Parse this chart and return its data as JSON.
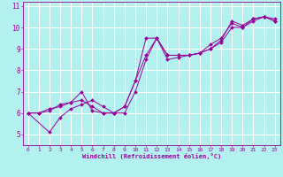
{
  "xlabel": "Windchill (Refroidissement éolien,°C)",
  "bg_color": "#b3f0f0",
  "line_color": "#990099",
  "grid_color": "#ffffff",
  "xlim": [
    -0.5,
    23.5
  ],
  "ylim": [
    4.5,
    11.2
  ],
  "xticks": [
    0,
    1,
    2,
    3,
    4,
    5,
    6,
    7,
    8,
    9,
    10,
    11,
    12,
    13,
    14,
    15,
    16,
    17,
    18,
    19,
    20,
    21,
    22,
    23
  ],
  "yticks": [
    5,
    6,
    7,
    8,
    9,
    10,
    11
  ],
  "series": [
    {
      "x": [
        0,
        1,
        2,
        3,
        4,
        5,
        6,
        7,
        8,
        9,
        10,
        11,
        12,
        13,
        14,
        15,
        16,
        17,
        18,
        19,
        20,
        21,
        22,
        23
      ],
      "y": [
        6.0,
        6.0,
        6.1,
        6.4,
        6.5,
        7.0,
        6.1,
        6.0,
        6.0,
        6.3,
        7.5,
        9.5,
        9.5,
        8.7,
        8.7,
        8.7,
        8.8,
        9.0,
        9.4,
        10.3,
        10.1,
        10.4,
        10.5,
        10.3
      ]
    },
    {
      "x": [
        0,
        1,
        2,
        3,
        4,
        5,
        6,
        7,
        8,
        9,
        10,
        11,
        12,
        13,
        14,
        15,
        16,
        17,
        18,
        19,
        20,
        21,
        22,
        23
      ],
      "y": [
        6.0,
        6.0,
        6.2,
        6.3,
        6.5,
        6.6,
        6.3,
        6.0,
        6.0,
        6.0,
        7.0,
        8.5,
        9.5,
        8.5,
        8.6,
        8.7,
        8.8,
        9.0,
        9.3,
        10.0,
        10.0,
        10.3,
        10.5,
        10.3
      ]
    },
    {
      "x": [
        0,
        2,
        3,
        4,
        5,
        6,
        7,
        8,
        9,
        10,
        11,
        12,
        13,
        14,
        15,
        16,
        17,
        18,
        19,
        20,
        21,
        22,
        23
      ],
      "y": [
        6.0,
        5.1,
        5.8,
        6.2,
        6.4,
        6.6,
        6.3,
        6.0,
        6.3,
        7.5,
        8.7,
        9.5,
        8.7,
        8.7,
        8.7,
        8.8,
        9.2,
        9.5,
        10.2,
        10.0,
        10.4,
        10.5,
        10.4
      ]
    }
  ]
}
